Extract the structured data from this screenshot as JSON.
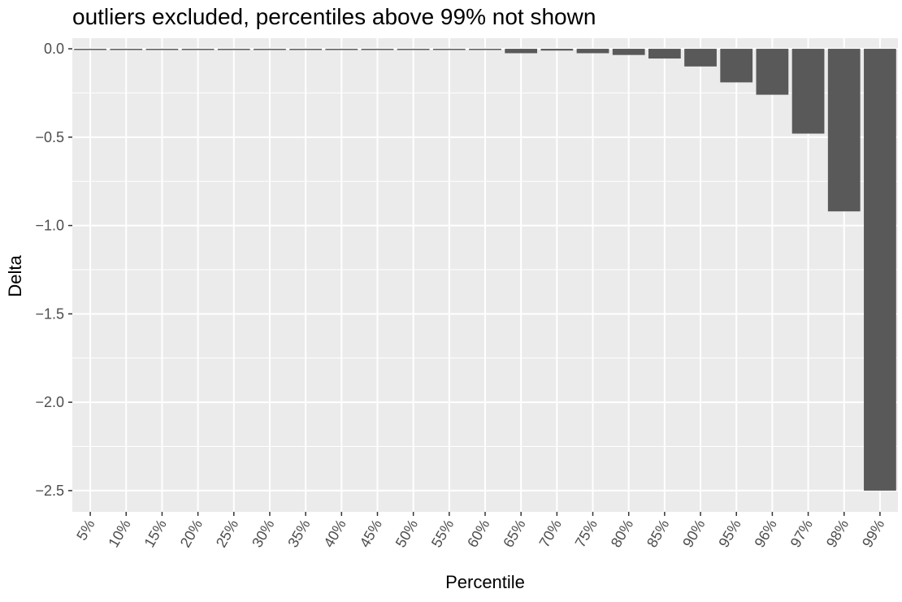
{
  "chart_data": {
    "type": "bar",
    "title": "outliers excluded, percentiles above 99% not shown",
    "xlabel": "Percentile",
    "ylabel": "Delta",
    "categories": [
      "5%",
      "10%",
      "15%",
      "20%",
      "25%",
      "30%",
      "35%",
      "40%",
      "45%",
      "50%",
      "55%",
      "60%",
      "65%",
      "70%",
      "75%",
      "80%",
      "85%",
      "90%",
      "95%",
      "96%",
      "97%",
      "98%",
      "99%"
    ],
    "values": [
      -0.005,
      -0.005,
      -0.005,
      -0.005,
      -0.005,
      -0.005,
      -0.005,
      -0.005,
      -0.005,
      -0.005,
      -0.005,
      -0.005,
      -0.025,
      -0.01,
      -0.025,
      -0.035,
      -0.055,
      -0.1,
      -0.19,
      -0.26,
      -0.48,
      -0.92,
      -2.5
    ],
    "ylim": [
      -2.62,
      0.06
    ],
    "yticks": [
      0.0,
      -0.5,
      -1.0,
      -1.5,
      -2.0,
      -2.5
    ],
    "ytick_labels": [
      "0.0",
      "−0.5",
      "−1.0",
      "−1.5",
      "−2.0",
      "−2.5"
    ],
    "grid": true,
    "colors": {
      "panel": "#ebebeb",
      "grid": "#ffffff",
      "bar": "#595959"
    }
  }
}
